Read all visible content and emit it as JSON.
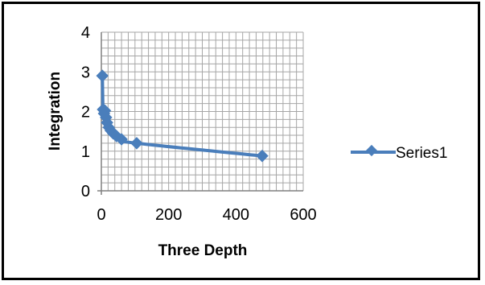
{
  "chart_data": {
    "type": "scatter",
    "title": "",
    "xlabel": "Three Depth",
    "ylabel": "Integration",
    "xlim": [
      0,
      600
    ],
    "ylim": [
      0,
      4
    ],
    "x_ticks": [
      0,
      200,
      400,
      600
    ],
    "y_ticks": [
      0,
      1,
      2,
      3,
      4
    ],
    "grid": true,
    "legend_position": "right",
    "markers": true,
    "line": "smooth",
    "series": [
      {
        "name": "Series1",
        "color": "#4a7ebb",
        "x": [
          3,
          5,
          8,
          11,
          14,
          17,
          22,
          28,
          35,
          45,
          60,
          105,
          478
        ],
        "y": [
          2.9,
          2.05,
          1.95,
          2.02,
          1.85,
          1.72,
          1.6,
          1.52,
          1.45,
          1.38,
          1.3,
          1.2,
          0.88
        ]
      }
    ]
  }
}
